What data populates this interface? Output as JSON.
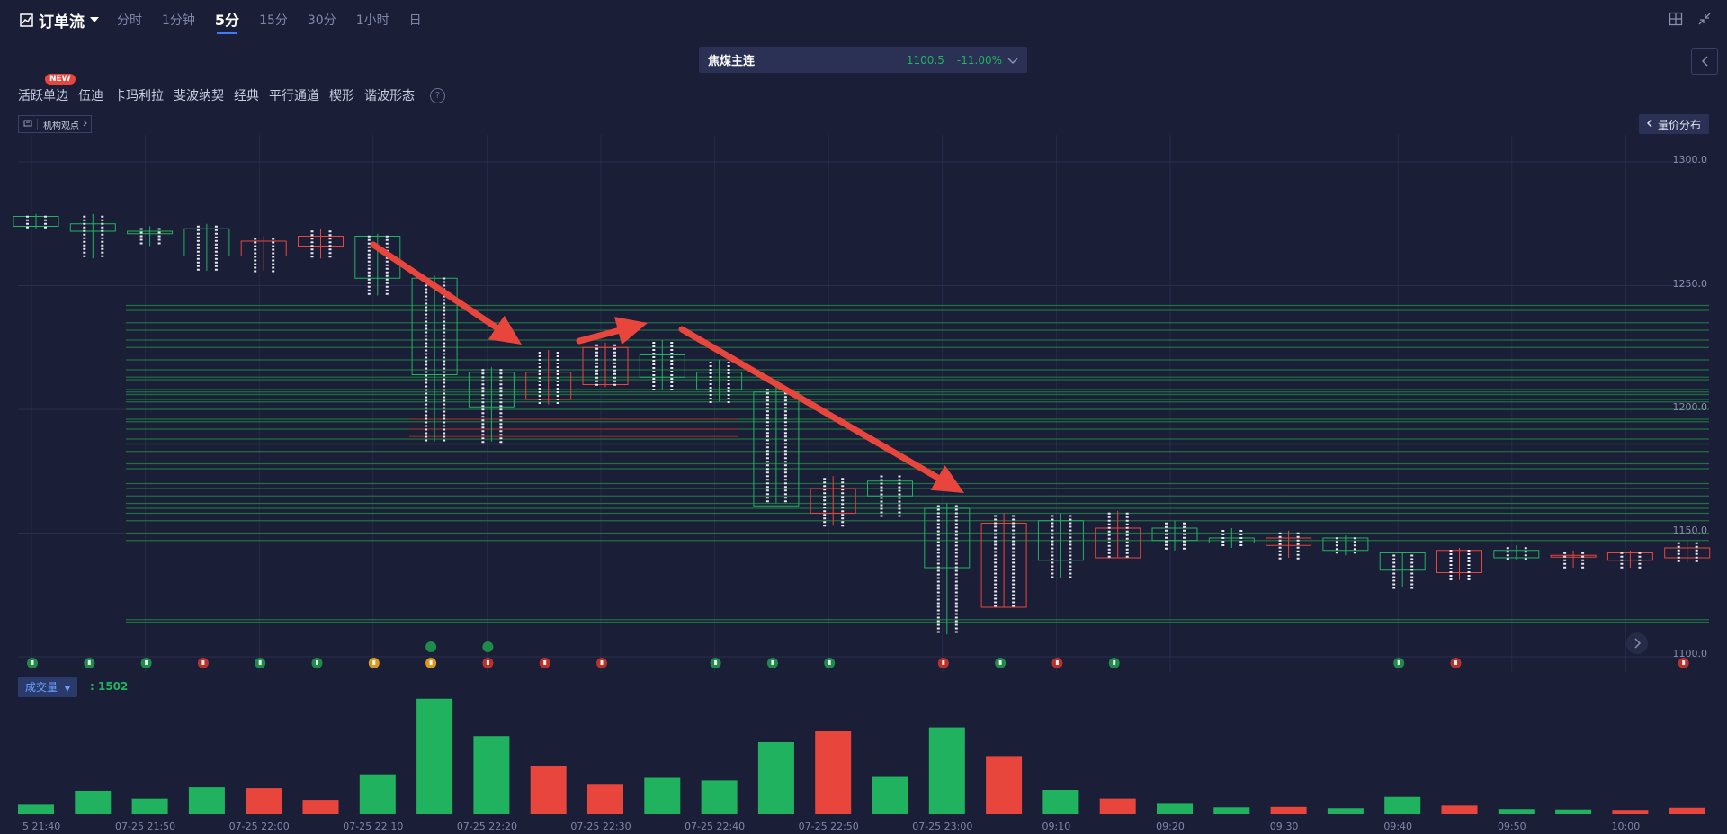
{
  "app": {
    "title": "订单流",
    "timeframes": [
      "分时",
      "1分钟",
      "5分",
      "15分",
      "30分",
      "1小时",
      "日"
    ],
    "active_timeframe": "5分"
  },
  "contract": {
    "name": "焦煤主连",
    "price": "1100.5",
    "change": "-11.00%"
  },
  "tools": [
    "活跃单边",
    "伍迪",
    "卡玛利拉",
    "斐波纳契",
    "经典",
    "平行通道",
    "楔形",
    "谐波形态"
  ],
  "new_badge": "NEW",
  "help": "?",
  "view_button": {
    "label": "机构观点"
  },
  "dist_button": {
    "label": "量价分布"
  },
  "volume": {
    "select_label": "成交量",
    "value": ": 1502"
  },
  "chart_data": {
    "type": "bar",
    "price_axis": {
      "ticks": [
        "1300.0",
        "1250.0",
        "1200.0",
        "1150.0",
        "1100.0"
      ],
      "ylim": [
        1100,
        1300
      ]
    },
    "time_labels": [
      "5 21:40",
      "07-25 21:50",
      "07-25 22:00",
      "07-25 22:10",
      "07-25 22:20",
      "07-25 22:30",
      "07-25 22:40",
      "07-25 22:50",
      "07-25 23:00",
      "09:10",
      "09:20",
      "09:30",
      "09:40",
      "09:50",
      "10:00"
    ],
    "candles": [
      {
        "open": 1274,
        "close": 1278,
        "high": 1279,
        "low": 1273,
        "up": true
      },
      {
        "open": 1272,
        "close": 1275,
        "high": 1279,
        "low": 1261,
        "up": true
      },
      {
        "open": 1271,
        "close": 1272,
        "high": 1274,
        "low": 1266,
        "up": true
      },
      {
        "open": 1262,
        "close": 1273,
        "high": 1275,
        "low": 1256,
        "up": true
      },
      {
        "open": 1268,
        "close": 1262,
        "high": 1270,
        "low": 1256,
        "up": false
      },
      {
        "open": 1270,
        "close": 1266,
        "high": 1273,
        "low": 1261,
        "up": false
      },
      {
        "open": 1253,
        "close": 1270,
        "high": 1271,
        "low": 1246,
        "up": true
      },
      {
        "open": 1214,
        "close": 1253,
        "high": 1254,
        "low": 1187,
        "up": true
      },
      {
        "open": 1201,
        "close": 1215,
        "high": 1217,
        "low": 1187,
        "up": true
      },
      {
        "open": 1215,
        "close": 1204,
        "high": 1224,
        "low": 1202,
        "up": false
      },
      {
        "open": 1225,
        "close": 1210,
        "high": 1227,
        "low": 1209,
        "up": false
      },
      {
        "open": 1213,
        "close": 1222,
        "high": 1228,
        "low": 1208,
        "up": true
      },
      {
        "open": 1208,
        "close": 1215,
        "high": 1220,
        "low": 1203,
        "up": true
      },
      {
        "open": 1161,
        "close": 1207,
        "high": 1209,
        "low": 1162,
        "up": true
      },
      {
        "open": 1168,
        "close": 1158,
        "high": 1173,
        "low": 1153,
        "up": false
      },
      {
        "open": 1165,
        "close": 1171,
        "high": 1174,
        "low": 1156,
        "up": true
      },
      {
        "open": 1136,
        "close": 1160,
        "high": 1162,
        "low": 1109,
        "up": true
      },
      {
        "open": 1154,
        "close": 1120,
        "high": 1158,
        "low": 1120,
        "up": false
      },
      {
        "open": 1139,
        "close": 1155,
        "high": 1158,
        "low": 1132,
        "up": true
      },
      {
        "open": 1152,
        "close": 1140,
        "high": 1159,
        "low": 1140,
        "up": false
      },
      {
        "open": 1147,
        "close": 1152,
        "high": 1155,
        "low": 1143,
        "up": true
      },
      {
        "open": 1146,
        "close": 1148,
        "high": 1152,
        "low": 1144,
        "up": true
      },
      {
        "open": 1148,
        "close": 1145,
        "high": 1151,
        "low": 1140,
        "up": false
      },
      {
        "open": 1143,
        "close": 1148,
        "high": 1149,
        "low": 1141,
        "up": true
      },
      {
        "open": 1135,
        "close": 1142,
        "high": 1142,
        "low": 1128,
        "up": true
      },
      {
        "open": 1143,
        "close": 1134,
        "high": 1144,
        "low": 1131,
        "up": false
      },
      {
        "open": 1140,
        "close": 1143,
        "high": 1145,
        "low": 1139,
        "up": true
      },
      {
        "open": 1141,
        "close": 1141,
        "high": 1143,
        "low": 1136,
        "up": false
      },
      {
        "open": 1142,
        "close": 1139,
        "high": 1143,
        "low": 1136,
        "up": false
      },
      {
        "open": 1144,
        "close": 1140,
        "high": 1147,
        "low": 1138,
        "up": false
      }
    ],
    "volume_values": [
      110,
      270,
      180,
      310,
      300,
      165,
      460,
      1330,
      900,
      560,
      350,
      420,
      390,
      830,
      960,
      430,
      1000,
      670,
      280,
      180,
      120,
      80,
      85,
      70,
      200,
      100,
      60,
      55,
      50,
      75
    ],
    "volume_up": [
      true,
      true,
      true,
      true,
      false,
      false,
      true,
      true,
      true,
      false,
      false,
      true,
      true,
      true,
      false,
      true,
      true,
      false,
      true,
      false,
      true,
      true,
      false,
      true,
      true,
      false,
      true,
      true,
      false,
      false
    ],
    "signal_icons": [
      "up-green",
      "down-green",
      "down-green",
      "up-red",
      "up-green",
      "up-green",
      "up-orange",
      "up-orange",
      "up-red",
      "up-red",
      "up-red",
      "",
      "up-green",
      "up-green",
      "down-green",
      "",
      "up-red-fill",
      "up-green",
      "up-red",
      "up-green",
      "",
      "",
      "",
      "",
      "up-green",
      "up-red-fill",
      "",
      "",
      "",
      "up-red"
    ],
    "green_levels": [
      1242,
      1240,
      1235,
      1232,
      1228,
      1225,
      1220,
      1216,
      1213,
      1212,
      1208,
      1207,
      1206,
      1204,
      1203,
      1200,
      1196,
      1195,
      1192,
      1188,
      1186,
      1183,
      1178,
      1176,
      1170,
      1168,
      1165,
      1162,
      1160,
      1158,
      1155,
      1150,
      1147,
      1115,
      1114
    ],
    "red_levels": [
      1196,
      1192,
      1189
    ],
    "grid_prices": [
      1300,
      1250,
      1200,
      1150,
      1100
    ],
    "colors": {
      "up": "#21b260",
      "down": "#e8453c",
      "arrow": "#e8453c",
      "bg": "#1a1e37"
    }
  }
}
